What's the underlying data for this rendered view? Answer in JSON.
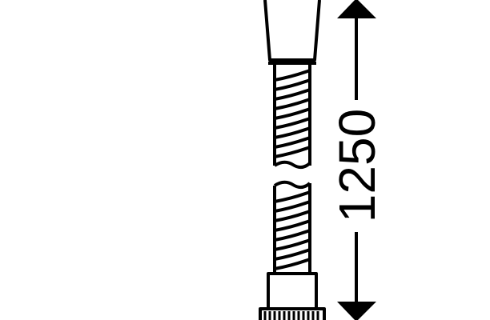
{
  "dimension": {
    "length_label": "1250"
  },
  "colors": {
    "line": "#000000",
    "background": "#ffffff"
  }
}
